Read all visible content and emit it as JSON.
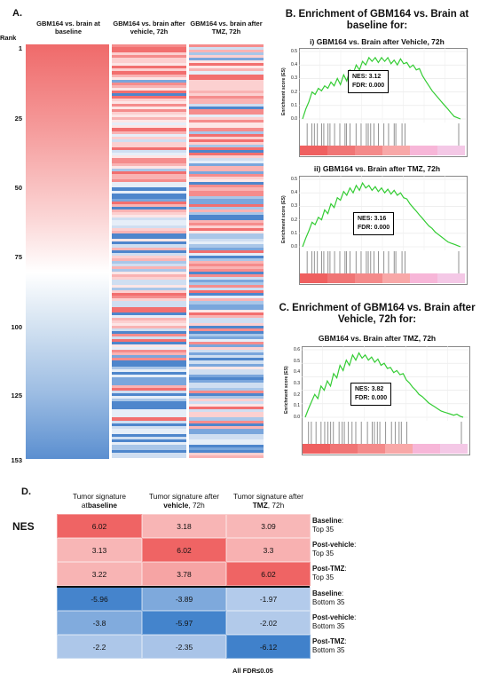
{
  "panel_a": {
    "letter": "A.",
    "rank_label": "Rank",
    "rank_ticks": [
      "1",
      "25",
      "50",
      "75",
      "100",
      "125",
      "153"
    ],
    "columns": [
      {
        "header": "GBM164 vs. brain at baseline"
      },
      {
        "header": "GBM164 vs. brain after vehicle, 72h"
      },
      {
        "header": "GBM164 vs. brain after TMZ, 72h"
      }
    ]
  },
  "panel_b": {
    "title": "B. Enrichment of GBM164 vs. Brain at baseline for:",
    "plots": [
      {
        "subtitle": "i) GBM164 vs. Brain after Vehicle, 72h",
        "ylabel": "Enrichment score (ES)",
        "nes": "NES: 3.12",
        "fdr": "FDR: 0.000",
        "yticks": [
          "0.5",
          "0.4",
          "0.3",
          "0.2",
          "0.1",
          "0.0"
        ]
      },
      {
        "subtitle": "ii) GBM164 vs. Brain after TMZ, 72h",
        "ylabel": "Enrichment score (ES)",
        "nes": "NES: 3.16",
        "fdr": "FDR: 0.000",
        "yticks": [
          "0.5",
          "0.4",
          "0.3",
          "0.2",
          "0.1",
          "0.0"
        ]
      }
    ]
  },
  "panel_c": {
    "title": "C. Enrichment of GBM164 vs. Brain after Vehicle, 72h for:",
    "plot": {
      "subtitle": "GBM164 vs. Brain after TMZ, 72h",
      "ylabel": "Enrichment score (ES)",
      "nes": "NES: 3.82",
      "fdr": "FDR: 0.000",
      "yticks": [
        "0.6",
        "0.5",
        "0.4",
        "0.3",
        "0.2",
        "0.1",
        "0.0"
      ]
    }
  },
  "panel_d": {
    "letter": "D.",
    "row_axis_label": "NES",
    "col_headers": [
      {
        "pre": "Tumor signature at",
        "bold": "baseline",
        "post": ""
      },
      {
        "pre": "Tumor signature after ",
        "bold": "vehicle",
        "post": ", 72h"
      },
      {
        "pre": "Tumor signature after ",
        "bold": "TMZ",
        "post": ", 72h"
      }
    ],
    "row_labels": [
      {
        "bold": "Baseline",
        "rest": ":",
        "sub": "Top 35"
      },
      {
        "bold": "Post-vehicle",
        "rest": ":",
        "sub": "Top 35"
      },
      {
        "bold": "Post-TMZ",
        "rest": ":",
        "sub": "Top 35"
      },
      {
        "bold": "Baseline",
        "rest": ":",
        "sub": "Bottom 35"
      },
      {
        "bold": "Post-vehicle",
        "rest": ":",
        "sub": "Bottom 35"
      },
      {
        "bold": "Post-TMZ",
        "rest": ":",
        "sub": "Bottom 35"
      }
    ],
    "footnote": "All FDR≤0.05"
  },
  "chart_data": [
    {
      "type": "heatmap",
      "title": "",
      "columns": [
        "GBM164 vs. brain at baseline",
        "GBM164 vs. brain after vehicle, 72h",
        "GBM164 vs. brain after TMZ, 72h"
      ],
      "rank_range": [
        1,
        153
      ],
      "baseline_gradient": [
        "#ef6a6a",
        "#fbd9d9",
        "#ffffff",
        "#c9dcef",
        "#5b8fd0"
      ]
    },
    {
      "type": "line",
      "title": "i) GBM164 vs. Brain after Vehicle, 72h",
      "ylabel": "Enrichment score (ES)",
      "ylim": [
        0,
        0.55
      ],
      "x": [
        0,
        2,
        4,
        6,
        8,
        10,
        12,
        14,
        16,
        18,
        20,
        22,
        24,
        26,
        28,
        30,
        32,
        34,
        36,
        38,
        40,
        42,
        44,
        46,
        48,
        50,
        52,
        54,
        56,
        58,
        60,
        62,
        64,
        66,
        68,
        70,
        72,
        74,
        76,
        78,
        80,
        82,
        84,
        86,
        88,
        90,
        92,
        94,
        96,
        98,
        100
      ],
      "values": [
        0.0,
        0.08,
        0.14,
        0.22,
        0.2,
        0.25,
        0.23,
        0.27,
        0.25,
        0.3,
        0.27,
        0.33,
        0.28,
        0.36,
        0.31,
        0.4,
        0.37,
        0.44,
        0.4,
        0.47,
        0.44,
        0.5,
        0.47,
        0.5,
        0.46,
        0.5,
        0.47,
        0.5,
        0.45,
        0.48,
        0.44,
        0.49,
        0.45,
        0.46,
        0.42,
        0.44,
        0.4,
        0.41,
        0.35,
        0.31,
        0.27,
        0.23,
        0.2,
        0.17,
        0.14,
        0.11,
        0.08,
        0.05,
        0.02,
        0.01,
        0.0
      ],
      "color": "#33cc33"
    },
    {
      "type": "line",
      "title": "ii) GBM164 vs. Brain after TMZ, 72h",
      "ylabel": "Enrichment score (ES)",
      "ylim": [
        0,
        0.55
      ],
      "x": [
        0,
        2,
        4,
        6,
        8,
        10,
        12,
        14,
        16,
        18,
        20,
        22,
        24,
        26,
        28,
        30,
        32,
        34,
        36,
        38,
        40,
        42,
        44,
        46,
        48,
        50,
        52,
        54,
        56,
        58,
        60,
        62,
        64,
        66,
        68,
        70,
        72,
        74,
        76,
        78,
        80,
        82,
        84,
        86,
        88,
        90,
        92,
        94,
        96,
        98,
        100
      ],
      "values": [
        0.0,
        0.07,
        0.13,
        0.2,
        0.18,
        0.24,
        0.22,
        0.3,
        0.27,
        0.35,
        0.32,
        0.4,
        0.38,
        0.45,
        0.42,
        0.48,
        0.44,
        0.5,
        0.46,
        0.52,
        0.48,
        0.5,
        0.46,
        0.49,
        0.45,
        0.48,
        0.44,
        0.47,
        0.43,
        0.46,
        0.42,
        0.44,
        0.4,
        0.39,
        0.35,
        0.32,
        0.29,
        0.26,
        0.23,
        0.2,
        0.17,
        0.15,
        0.12,
        0.1,
        0.08,
        0.06,
        0.04,
        0.03,
        0.02,
        0.01,
        0.0
      ],
      "color": "#33cc33"
    },
    {
      "type": "line",
      "title": "GBM164 vs. Brain after TMZ, 72h",
      "ylabel": "Enrichment score (ES)",
      "ylim": [
        0,
        0.65
      ],
      "x": [
        0,
        2,
        4,
        6,
        8,
        10,
        12,
        14,
        16,
        18,
        20,
        22,
        24,
        26,
        28,
        30,
        32,
        34,
        36,
        38,
        40,
        42,
        44,
        46,
        48,
        50,
        52,
        54,
        56,
        58,
        60,
        62,
        64,
        66,
        68,
        70,
        72,
        74,
        76,
        78,
        80,
        82,
        84,
        86,
        88,
        90,
        92,
        94,
        96,
        98,
        100
      ],
      "values": [
        0.0,
        0.08,
        0.15,
        0.22,
        0.18,
        0.3,
        0.26,
        0.35,
        0.3,
        0.42,
        0.38,
        0.5,
        0.45,
        0.55,
        0.5,
        0.6,
        0.55,
        0.62,
        0.57,
        0.6,
        0.55,
        0.58,
        0.53,
        0.56,
        0.5,
        0.52,
        0.47,
        0.48,
        0.43,
        0.45,
        0.41,
        0.42,
        0.36,
        0.33,
        0.29,
        0.26,
        0.22,
        0.2,
        0.17,
        0.14,
        0.12,
        0.1,
        0.08,
        0.06,
        0.05,
        0.04,
        0.03,
        0.02,
        0.03,
        0.01,
        0.0
      ],
      "color": "#33cc33"
    },
    {
      "type": "table",
      "title": "",
      "ylabel": "NES",
      "columns": [
        "Tumor signature at baseline",
        "Tumor signature after vehicle, 72h",
        "Tumor signature after TMZ, 72h"
      ],
      "rows": [
        "Baseline: Top 35",
        "Post-vehicle: Top 35",
        "Post-TMZ: Top 35",
        "Baseline: Bottom 35",
        "Post-vehicle: Bottom 35",
        "Post-TMZ: Bottom 35"
      ],
      "values": [
        [
          6.02,
          3.18,
          3.09
        ],
        [
          3.13,
          6.02,
          3.3
        ],
        [
          3.22,
          3.78,
          6.02
        ],
        [
          -5.96,
          -3.89,
          -1.97
        ],
        [
          -3.8,
          -5.97,
          -2.02
        ],
        [
          -2.2,
          -2.35,
          -6.12
        ]
      ],
      "labels": [
        [
          "6.02",
          "3.18",
          "3.09"
        ],
        [
          "3.13",
          "6.02",
          "3.3"
        ],
        [
          "3.22",
          "3.78",
          "6.02"
        ],
        [
          "-5.96",
          "-3.89",
          "-1.97"
        ],
        [
          "-3.8",
          "-5.97",
          "-2.02"
        ],
        [
          "-2.2",
          "-2.35",
          "-6.12"
        ]
      ]
    }
  ]
}
